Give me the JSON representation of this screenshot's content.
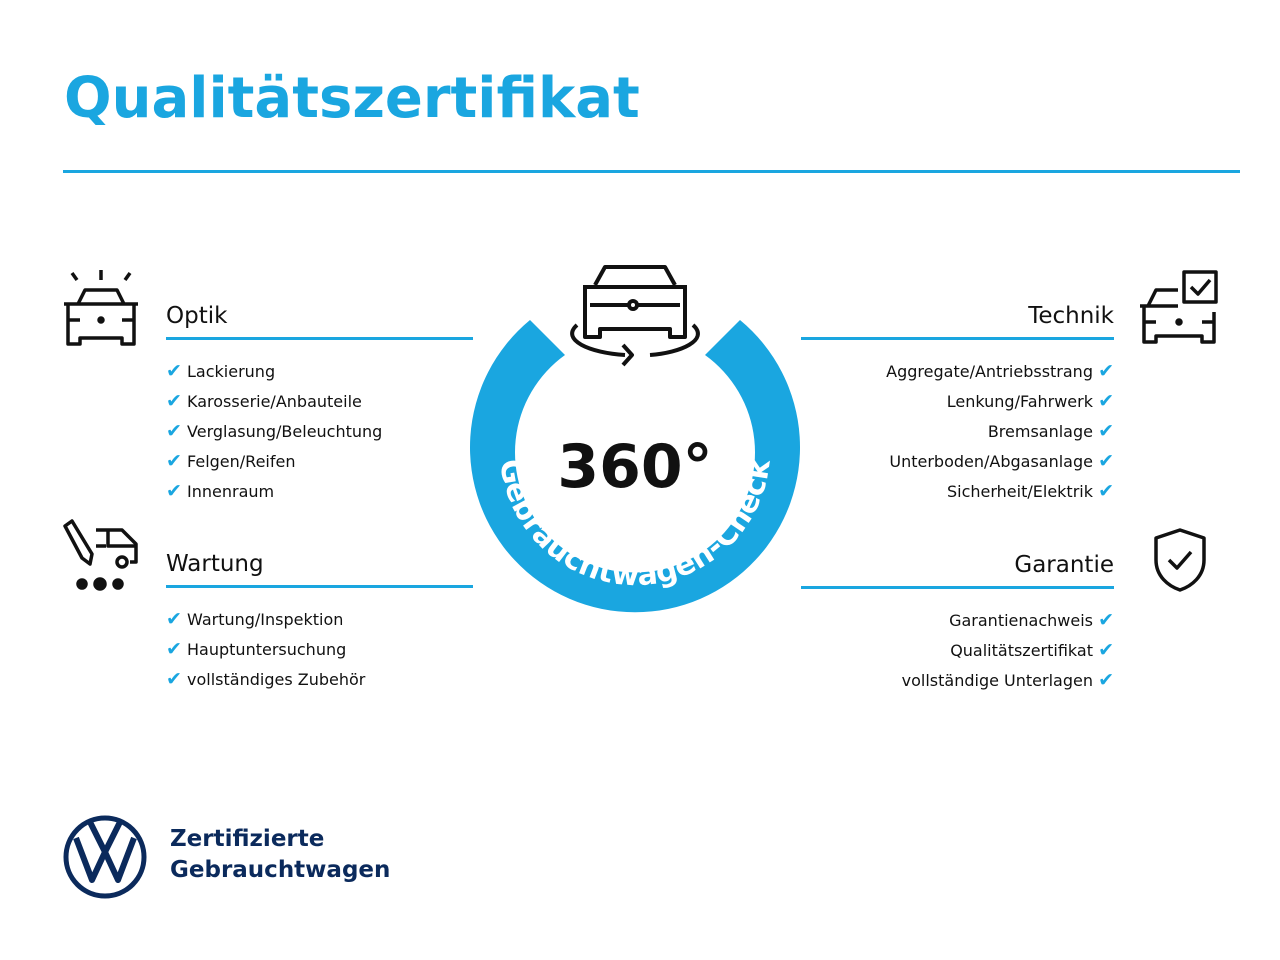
{
  "title": "Qualitätszertifikat",
  "colors": {
    "accent": "#1aa6e0",
    "brand": "#0b2a5c"
  },
  "badge": {
    "number": "360°",
    "ring_text": "Gebrauchtwagen-Check"
  },
  "sections": {
    "optik": {
      "title": "Optik",
      "icon": "car-inspection-icon",
      "items": [
        "Lackierung",
        "Karosserie/Anbauteile",
        "Verglasung/Beleuchtung",
        "Felgen/Reifen",
        "Innenraum"
      ]
    },
    "wartung": {
      "title": "Wartung",
      "icon": "service-van-icon",
      "items": [
        "Wartung/Inspektion",
        "Hauptuntersuchung",
        "vollständiges Zubehör"
      ]
    },
    "technik": {
      "title": "Technik",
      "icon": "car-checkbox-icon",
      "items": [
        "Aggregate/Antriebsstrang",
        "Lenkung/Fahrwerk",
        "Bremsanlage",
        "Unterboden/Abgasanlage",
        "Sicherheit/Elektrik"
      ]
    },
    "garantie": {
      "title": "Garantie",
      "icon": "shield-check-icon",
      "items": [
        "Garantienachweis",
        "Qualitätszertifikat",
        "vollständige Unterlagen"
      ]
    }
  },
  "check_symbol": "✔",
  "footer": {
    "line1": "Zertifizierte",
    "line2": "Gebrauchtwagen",
    "logo": "VW"
  }
}
